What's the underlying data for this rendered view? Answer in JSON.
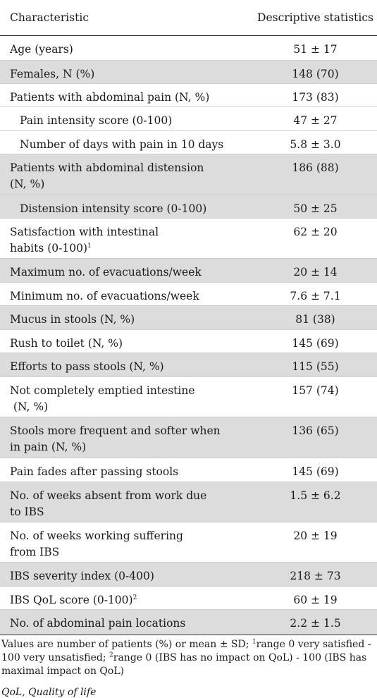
{
  "header": {
    "col1": "Characteristic",
    "col2": "Descriptive statistics"
  },
  "rows": [
    {
      "label": "Age (years)",
      "value": "51 ± 17"
    },
    {
      "label": "Females, N (%)",
      "value": "148 (70)"
    },
    {
      "label": "Patients with abdominal pain (N, %)",
      "value": "173 (83)"
    },
    {
      "label": "Pain intensity score (0-100)",
      "value": "47 ± 27"
    },
    {
      "label": "Number of days with pain in 10 days",
      "value": "5.8 ± 3.0"
    },
    {
      "label_line1": "Patients with abdominal distension",
      "label_line2": "(N, %)",
      "value": "186 (88)"
    },
    {
      "label": "Distension intensity score (0-100)",
      "value": "50 ± 25"
    },
    {
      "label_line1": "Satisfaction with intestinal",
      "label_line2": "habits (0-100)",
      "sup": "1",
      "value": "62 ± 20"
    },
    {
      "label": "Maximum no. of evacuations/week",
      "value": "20 ± 14"
    },
    {
      "label": "Minimum no. of evacuations/week",
      "value": "7.6 ± 7.1"
    },
    {
      "label": "Mucus in stools (N, %)",
      "value": "81 (38)"
    },
    {
      "label": "Rush to toilet (N, %)",
      "value": "145 (69)"
    },
    {
      "label": "Efforts to pass stools (N, %)",
      "value": "115 (55)"
    },
    {
      "label_line1": "Not completely emptied intestine",
      "label_line2": " (N, %)",
      "value": "157 (74)"
    },
    {
      "label_line1": "Stools more frequent and softer when",
      "label_line2": "in pain (N, %)",
      "value": "136 (65)"
    },
    {
      "label": "Pain fades after passing stools",
      "value": "145 (69)"
    },
    {
      "label_line1": "No. of weeks absent from work due",
      "label_line2": "to IBS",
      "value": "1.5 ± 6.2"
    },
    {
      "label_line1": "No. of weeks working suffering",
      "label_line2": "from IBS",
      "value": "20 ± 19"
    },
    {
      "label": "IBS severity index (0-400)",
      "value": "218 ± 73"
    },
    {
      "label": "IBS QoL score (0-100)",
      "sup": "2",
      "value": "60 ± 19"
    },
    {
      "label": "No. of abdominal pain locations",
      "value": "2.2 ± 1.5"
    }
  ],
  "footnote": {
    "part1": "Values are number of patients (%) or mean ± SD; ",
    "sup1": "1",
    "part2": "range 0 very satisfied - 100 very unsatisfied; ",
    "sup2": "2",
    "part3": "range 0 (IBS has no impact on QoL) - 100 (IBS has maximal impact on QoL)"
  },
  "abbreviation": "QoL, Quality of life"
}
